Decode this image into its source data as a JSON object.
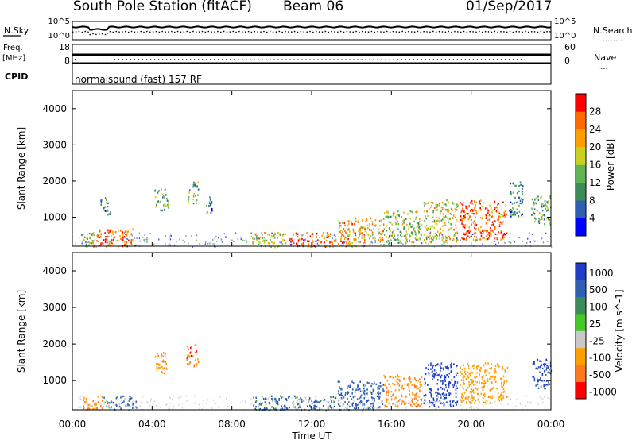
{
  "header": {
    "station": "South Pole Station (fitACF)",
    "beam": "Beam 06",
    "date": "01/Sep/2017"
  },
  "noise_panel": {
    "left_label": "N.Sky",
    "right_label": "N.Search",
    "right_legend": "........",
    "tick_top": "10^5",
    "tick_bottom": "10^0"
  },
  "freq_panel": {
    "left_label_1": "Freq.",
    "left_label_2": "[MHz]",
    "left_tick_top": "18",
    "left_tick_bottom": "8",
    "right_label": "Nave",
    "right_legend": "....",
    "right_tick_top": "60",
    "right_tick_bottom": "0",
    "cpid_label": "CPID"
  },
  "mode_text": "normalsound (fast) 157 RF",
  "colors": {
    "power": [
      "#0000ff",
      "#2f5fb3",
      "#3c8c5a",
      "#5fb454",
      "#c8d21e",
      "#ffa000",
      "#ff6a00",
      "#ff0000"
    ],
    "velocity": [
      "#ff0000",
      "#ff7a1e",
      "#ffa000",
      "#c8c8c8",
      "#46c828",
      "#3c8c5a",
      "#2f5fb3",
      "#1e3cc8"
    ]
  },
  "chart_data": [
    {
      "type": "heatmap",
      "panel": "power",
      "ylabel": "Slant Range [km]",
      "yticks": [
        "1000",
        "2000",
        "3000",
        "4000"
      ],
      "ylim": [
        200,
        4500
      ],
      "xlim_hours": [
        0,
        24
      ],
      "colorbar_label": "Power [dB]",
      "colorbar_ticks": [
        "4",
        "8",
        "12",
        "16",
        "20",
        "24",
        "28"
      ],
      "colorbar_range": [
        0,
        32
      ],
      "regions": [
        {
          "t": [
            1.0,
            3.2
          ],
          "r": [
            200,
            700
          ],
          "level": 26
        },
        {
          "t": [
            0.4,
            1.1
          ],
          "r": [
            200,
            600
          ],
          "level": 14
        },
        {
          "t": [
            1.4,
            1.9
          ],
          "r": [
            1100,
            1600
          ],
          "level": 10
        },
        {
          "t": [
            4.1,
            4.8
          ],
          "r": [
            1200,
            1800
          ],
          "level": 12
        },
        {
          "t": [
            5.7,
            6.3
          ],
          "r": [
            1400,
            2000
          ],
          "level": 13
        },
        {
          "t": [
            6.6,
            7.0
          ],
          "r": [
            1100,
            1600
          ],
          "level": 9
        },
        {
          "t": [
            9.0,
            10.7
          ],
          "r": [
            200,
            600
          ],
          "level": 18
        },
        {
          "t": [
            10.8,
            13.2
          ],
          "r": [
            200,
            600
          ],
          "level": 27
        },
        {
          "t": [
            13.3,
            15.6
          ],
          "r": [
            200,
            1000
          ],
          "level": 22
        },
        {
          "t": [
            15.6,
            17.5
          ],
          "r": [
            300,
            1200
          ],
          "level": 16
        },
        {
          "t": [
            17.6,
            19.3
          ],
          "r": [
            300,
            1500
          ],
          "level": 18
        },
        {
          "t": [
            19.4,
            21.8
          ],
          "r": [
            400,
            1500
          ],
          "level": 26
        },
        {
          "t": [
            21.9,
            22.6
          ],
          "r": [
            1000,
            2000
          ],
          "level": 9
        },
        {
          "t": [
            23.0,
            24.0
          ],
          "r": [
            800,
            1600
          ],
          "level": 12
        }
      ]
    },
    {
      "type": "heatmap",
      "panel": "velocity",
      "ylabel": "Slant Range [km]",
      "yticks": [
        "1000",
        "2000",
        "3000",
        "4000"
      ],
      "ylim": [
        200,
        4500
      ],
      "xlim_hours": [
        0,
        24
      ],
      "xticks": [
        "00:00",
        "04:00",
        "08:00",
        "12:00",
        "16:00",
        "20:00",
        "00:00"
      ],
      "xlabel": "Time UT",
      "colorbar_label": "Velocity [m s^-1]",
      "colorbar_ticks": [
        "1000",
        "500",
        "100",
        "25",
        "-25",
        "-100",
        "-500",
        "-1000"
      ],
      "regions": [
        {
          "t": [
            0.4,
            1.5
          ],
          "r": [
            200,
            600
          ],
          "level": -500
        },
        {
          "t": [
            1.5,
            3.2
          ],
          "r": [
            200,
            600
          ],
          "level": 100
        },
        {
          "t": [
            4.1,
            4.8
          ],
          "r": [
            1200,
            1800
          ],
          "level": -500
        },
        {
          "t": [
            5.7,
            6.3
          ],
          "r": [
            1400,
            2000
          ],
          "level": -800
        },
        {
          "t": [
            9.0,
            13.2
          ],
          "r": [
            200,
            600
          ],
          "level": 200
        },
        {
          "t": [
            13.3,
            15.6
          ],
          "r": [
            200,
            1000
          ],
          "level": 300
        },
        {
          "t": [
            15.6,
            17.5
          ],
          "r": [
            300,
            1200
          ],
          "level": -500
        },
        {
          "t": [
            17.6,
            19.3
          ],
          "r": [
            300,
            1500
          ],
          "level": 800
        },
        {
          "t": [
            19.4,
            21.8
          ],
          "r": [
            400,
            1500
          ],
          "level": -300
        },
        {
          "t": [
            23.0,
            24.0
          ],
          "r": [
            800,
            1600
          ],
          "level": 600
        }
      ]
    }
  ]
}
